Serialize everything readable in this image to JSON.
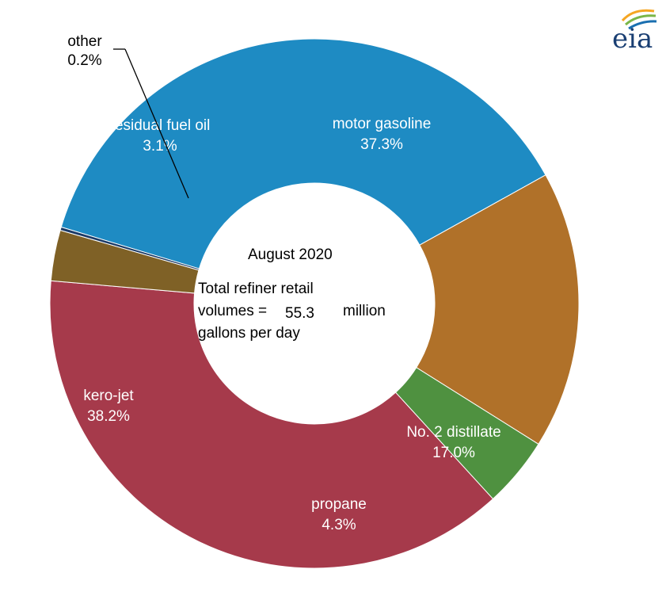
{
  "chart_data": {
    "type": "pie",
    "variant": "donut",
    "slices": [
      {
        "label": "motor gasoline",
        "value": 37.3,
        "pct_label": "37.3%",
        "color": "#1e8bc3"
      },
      {
        "label": "No. 2 distillate",
        "value": 17.0,
        "pct_label": "17.0%",
        "color": "#b07129"
      },
      {
        "label": "propane",
        "value": 4.3,
        "pct_label": "4.3%",
        "color": "#4f9140"
      },
      {
        "label": "kero-jet",
        "value": 38.2,
        "pct_label": "38.2%",
        "color": "#a63a4b"
      },
      {
        "label": "residual fuel oil",
        "value": 3.1,
        "pct_label": "3.1%",
        "color": "#7f6126"
      },
      {
        "label": "other",
        "value": 0.2,
        "pct_label": "0.2%",
        "color": "#1b3a66"
      }
    ],
    "center": {
      "line1": "August 2020",
      "line2": "Total refiner retail",
      "line3_prefix": "volumes =",
      "line3_value": "55.3",
      "line3_suffix": "million",
      "line4": "gallons per day"
    }
  },
  "logo": {
    "text": "eia",
    "colors": [
      "#f5a623",
      "#7ab648",
      "#1a6fb0"
    ]
  }
}
